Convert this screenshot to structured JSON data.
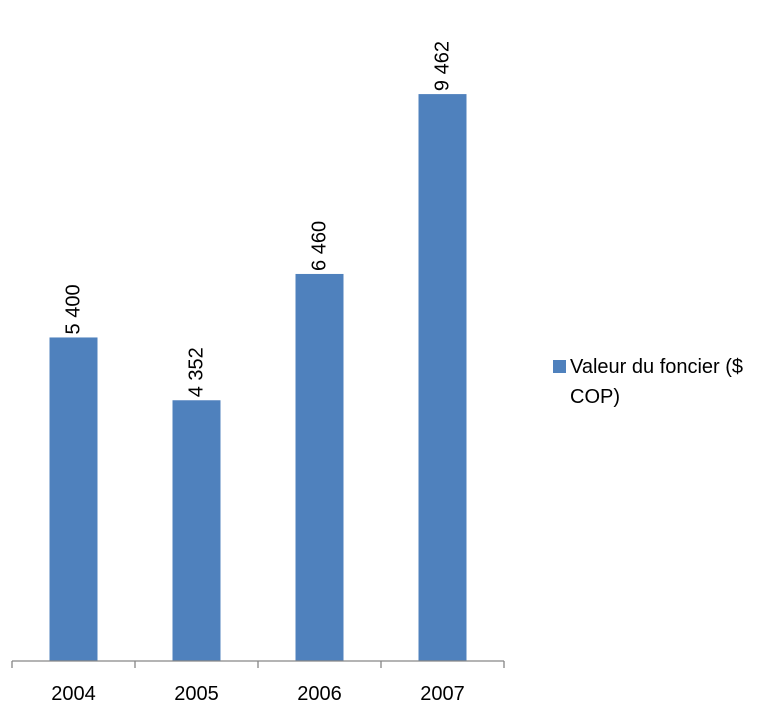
{
  "chart_data": {
    "type": "bar",
    "categories": [
      "2004",
      "2005",
      "2006",
      "2007"
    ],
    "series": [
      {
        "name": "Valeur du foncier ($ COP)",
        "values": [
          5400,
          4352,
          6460,
          9462
        ],
        "value_labels": [
          "5 400",
          "4 352",
          "6 460",
          "9 462"
        ],
        "color": "#4F81BD"
      }
    ],
    "ylim": [
      0,
      10000
    ],
    "grid": false,
    "y_axis_visible": false,
    "data_labels": "rotated-above-bars",
    "legend_position": "right"
  }
}
